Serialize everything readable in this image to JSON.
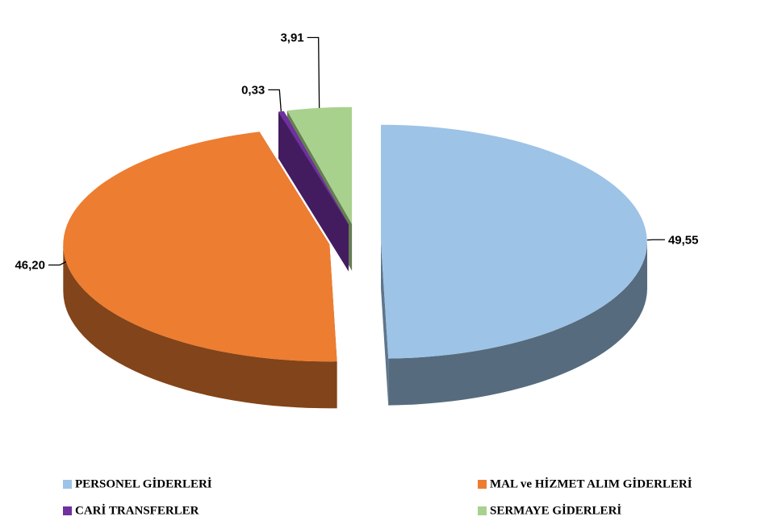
{
  "chart_data": {
    "type": "pie",
    "categories": [
      "PERSONEL GİDERLERİ",
      "MAL ve HİZMET ALIM GİDERLERİ",
      "CARİ TRANSFERLER",
      "SERMAYE GİDERLERİ"
    ],
    "values": [
      49.55,
      46.2,
      0.33,
      3.91
    ],
    "value_labels": [
      "49,55",
      "46,20",
      "0,33",
      "3,91"
    ],
    "colors": [
      "#9dc3e6",
      "#ed7d31",
      "#7030a0",
      "#a9d18e"
    ]
  }
}
